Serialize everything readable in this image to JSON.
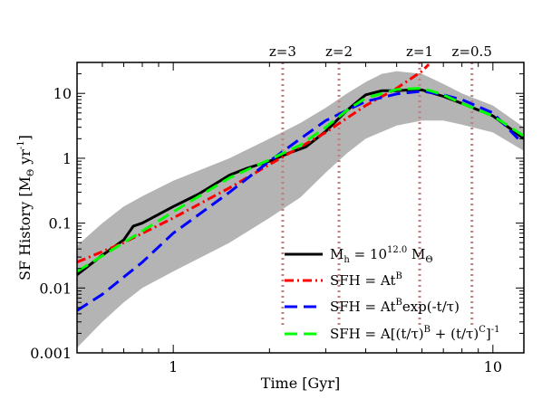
{
  "chart_data": {
    "type": "line",
    "xlabel": "Time [Gyr]",
    "ylabel": "SF History [M",
    "ylabel_sub": "Θ",
    "ylabel_tail": " yr",
    "ylabel_sup": "-1",
    "ylabel_close": "]",
    "x_scale": "log",
    "y_scale": "log",
    "xlim": [
      0.5,
      12.5
    ],
    "ylim": [
      0.001,
      30
    ],
    "x_tick_labels": [
      {
        "value": 1,
        "label": "1"
      },
      {
        "value": 10,
        "label": "10"
      }
    ],
    "y_tick_labels": [
      {
        "value": 0.001,
        "label": "0.001"
      },
      {
        "value": 0.01,
        "label": "0.01"
      },
      {
        "value": 0.1,
        "label": "0.1"
      },
      {
        "value": 1,
        "label": "1"
      },
      {
        "value": 10,
        "label": "10"
      }
    ],
    "redshift_markers": [
      {
        "label": "z=3",
        "time": 2.2
      },
      {
        "label": "z=2",
        "time": 3.3
      },
      {
        "label": "z=1",
        "time": 5.9
      },
      {
        "label": "z=0.5",
        "time": 8.6
      }
    ],
    "band": {
      "color": "#b4b4b4",
      "upper": [
        [
          0.5,
          0.045
        ],
        [
          0.6,
          0.1
        ],
        [
          0.7,
          0.18
        ],
        [
          0.8,
          0.26
        ],
        [
          1.0,
          0.45
        ],
        [
          1.5,
          1.0
        ],
        [
          2.0,
          2.0
        ],
        [
          2.5,
          3.5
        ],
        [
          3.0,
          6.0
        ],
        [
          3.5,
          10.0
        ],
        [
          4.0,
          15.0
        ],
        [
          4.5,
          20.0
        ],
        [
          5.0,
          22.0
        ],
        [
          6.0,
          20.0
        ],
        [
          7.0,
          14.0
        ],
        [
          8.0,
          10.0
        ],
        [
          10.0,
          6.5
        ],
        [
          12.5,
          3.0
        ]
      ],
      "lower": [
        [
          0.5,
          0.0012
        ],
        [
          0.6,
          0.003
        ],
        [
          0.7,
          0.006
        ],
        [
          0.8,
          0.01
        ],
        [
          1.0,
          0.018
        ],
        [
          1.5,
          0.05
        ],
        [
          2.0,
          0.12
        ],
        [
          2.5,
          0.25
        ],
        [
          3.0,
          0.6
        ],
        [
          3.5,
          1.2
        ],
        [
          4.0,
          2.0
        ],
        [
          5.0,
          3.2
        ],
        [
          6.0,
          3.8
        ],
        [
          7.0,
          3.8
        ],
        [
          8.0,
          3.3
        ],
        [
          10.0,
          2.5
        ],
        [
          12.5,
          1.3
        ]
      ]
    },
    "series": [
      {
        "key": "mh",
        "color": "#000000",
        "dash": "",
        "width": 3,
        "points": [
          [
            0.5,
            0.016
          ],
          [
            0.6,
            0.032
          ],
          [
            0.7,
            0.055
          ],
          [
            0.75,
            0.09
          ],
          [
            0.8,
            0.1
          ],
          [
            1.0,
            0.18
          ],
          [
            1.2,
            0.28
          ],
          [
            1.5,
            0.55
          ],
          [
            1.7,
            0.7
          ],
          [
            2.0,
            0.9
          ],
          [
            2.3,
            1.2
          ],
          [
            2.6,
            1.5
          ],
          [
            3.0,
            2.6
          ],
          [
            3.5,
            5.5
          ],
          [
            4.0,
            9.5
          ],
          [
            4.5,
            11.0
          ],
          [
            5.0,
            11.0
          ],
          [
            5.5,
            11.3
          ],
          [
            6.0,
            11.3
          ],
          [
            7.0,
            9.0
          ],
          [
            8.0,
            7.0
          ],
          [
            10.0,
            4.5
          ],
          [
            12.5,
            2.0
          ]
        ]
      },
      {
        "key": "sfh_atb",
        "color": "#ff0000",
        "dash": "10,4,2,4",
        "width": 3,
        "points": [
          [
            0.5,
            0.025
          ],
          [
            0.7,
            0.05
          ],
          [
            1.0,
            0.12
          ],
          [
            1.5,
            0.35
          ],
          [
            2.0,
            0.8
          ],
          [
            3.0,
            2.5
          ],
          [
            4.0,
            6.5
          ],
          [
            5.0,
            12.0
          ],
          [
            6.0,
            22.0
          ],
          [
            6.3,
            28.0
          ]
        ]
      },
      {
        "key": "sfh_exp",
        "color": "#0000ff",
        "dash": "14,7",
        "width": 3,
        "points": [
          [
            0.5,
            0.0045
          ],
          [
            0.6,
            0.008
          ],
          [
            0.8,
            0.025
          ],
          [
            1.0,
            0.07
          ],
          [
            1.5,
            0.3
          ],
          [
            2.0,
            0.9
          ],
          [
            2.5,
            2.0
          ],
          [
            3.0,
            3.8
          ],
          [
            3.5,
            5.5
          ],
          [
            4.0,
            7.5
          ],
          [
            5.0,
            9.8
          ],
          [
            6.0,
            10.8
          ],
          [
            7.0,
            9.5
          ],
          [
            8.0,
            8.0
          ],
          [
            10.0,
            5.0
          ],
          [
            12.0,
            2.0
          ]
        ]
      },
      {
        "key": "sfh_double",
        "color": "#00ff00",
        "dash": "14,7",
        "width": 3,
        "points": [
          [
            0.5,
            0.018
          ],
          [
            0.7,
            0.05
          ],
          [
            1.0,
            0.15
          ],
          [
            1.5,
            0.5
          ],
          [
            2.0,
            0.95
          ],
          [
            2.5,
            1.6
          ],
          [
            3.0,
            3.0
          ],
          [
            3.5,
            5.5
          ],
          [
            4.0,
            8.5
          ],
          [
            5.0,
            11.5
          ],
          [
            6.0,
            12.0
          ],
          [
            7.0,
            9.5
          ],
          [
            8.0,
            7.0
          ],
          [
            10.0,
            4.5
          ],
          [
            12.5,
            2.2
          ]
        ]
      }
    ],
    "legend": {
      "placement": "lower-right",
      "entries": [
        {
          "key": "mh",
          "parts": [
            [
              "M",
              ""
            ],
            [
              "h",
              "sub"
            ],
            [
              " = 10",
              ""
            ],
            [
              "12.0",
              "sup"
            ],
            [
              " M",
              ""
            ],
            [
              "Θ",
              "sub"
            ]
          ]
        },
        {
          "key": "sfh_atb",
          "parts": [
            [
              "SFH = At",
              ""
            ],
            [
              "B",
              "sup"
            ]
          ]
        },
        {
          "key": "sfh_exp",
          "parts": [
            [
              "SFH = At",
              ""
            ],
            [
              "B",
              "sup"
            ],
            [
              "exp(-t/τ)",
              ""
            ]
          ]
        },
        {
          "key": "sfh_double",
          "parts": [
            [
              "SFH = A[(t/τ)",
              ""
            ],
            [
              "B",
              "sup"
            ],
            [
              " + (t/τ)",
              ""
            ],
            [
              "C",
              "sup"
            ],
            [
              "]",
              ""
            ],
            [
              "-1",
              "sup"
            ]
          ]
        }
      ]
    }
  }
}
